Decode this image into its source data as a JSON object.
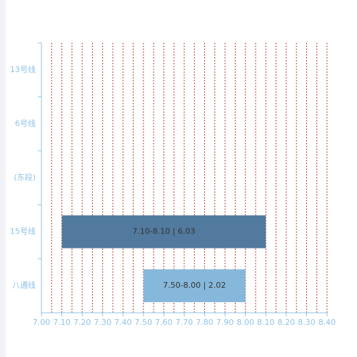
{
  "chart_data": {
    "type": "range-bar",
    "categories": [
      "13号线",
      "6号线",
      "(东段)",
      "15号线",
      "八通线"
    ],
    "starts": [
      null,
      null,
      null,
      7.1,
      7.5
    ],
    "ends": [
      null,
      null,
      null,
      8.1,
      8.0
    ],
    "value_labels": [
      null,
      null,
      null,
      "7.10-8.10 | 6.03",
      "7.50-8.00 | 2.02"
    ],
    "colors": [
      null,
      null,
      null,
      "#527a9e",
      "#86b8db"
    ],
    "xlim": [
      7.0,
      8.4
    ],
    "xticks": [
      {
        "value": 7.0,
        "label": "7.00"
      },
      {
        "value": 7.1,
        "label": "7.10"
      },
      {
        "value": 7.2,
        "label": "7.20"
      },
      {
        "value": 7.3,
        "label": "7.30"
      },
      {
        "value": 7.4,
        "label": "7.40"
      },
      {
        "value": 7.5,
        "label": "7.50"
      },
      {
        "value": 7.6,
        "label": "7.60"
      },
      {
        "value": 7.7,
        "label": "7.70"
      },
      {
        "value": 7.8,
        "label": "7.80"
      },
      {
        "value": 7.9,
        "label": "7.90"
      },
      {
        "value": 8.0,
        "label": "8.00"
      },
      {
        "value": 8.1,
        "label": "8.10"
      },
      {
        "value": 8.2,
        "label": "8.20"
      },
      {
        "value": 8.3,
        "label": "8.30"
      },
      {
        "value": 8.4,
        "label": "8.40"
      }
    ],
    "grid": true,
    "grid_color": "#c0392b"
  }
}
